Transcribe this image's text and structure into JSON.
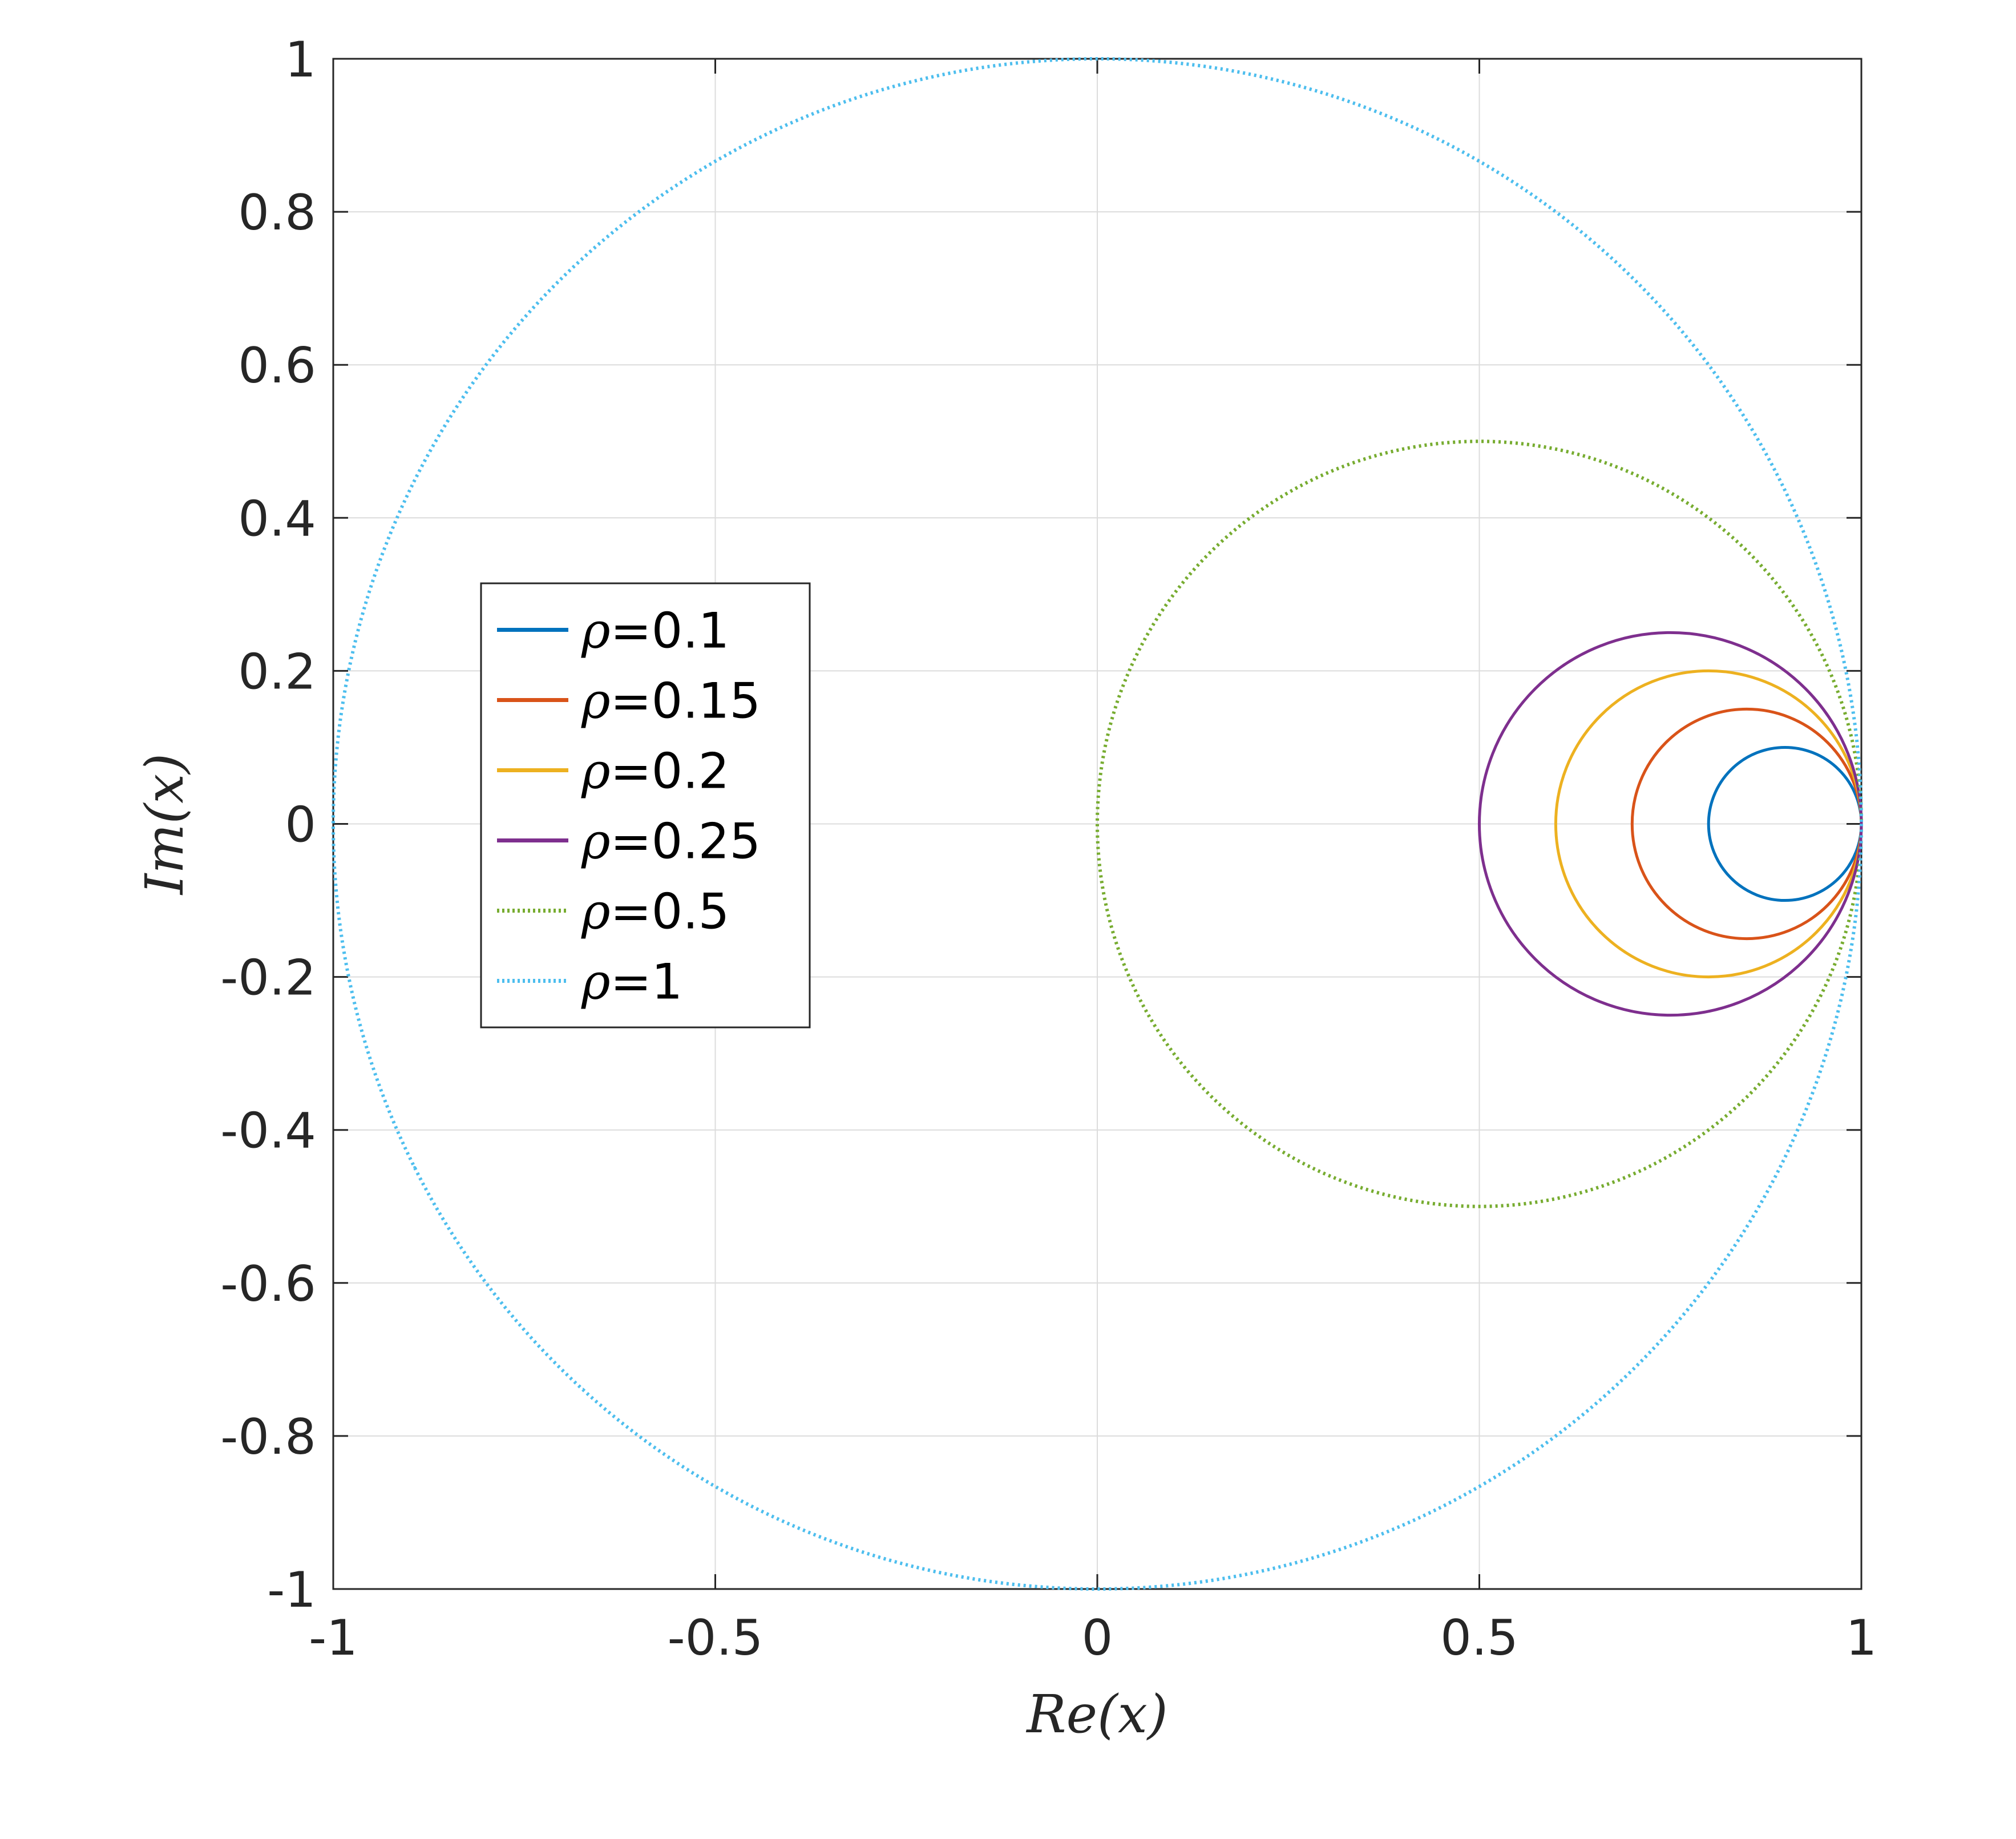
{
  "chart_data": {
    "type": "line",
    "xlabel": "Re(x)",
    "ylabel": "Im(x)",
    "xlim": [
      -1,
      1
    ],
    "ylim": [
      -1,
      1
    ],
    "x_ticks": [
      "-1",
      "-0.5",
      "0",
      "0.5",
      "1"
    ],
    "y_ticks": [
      "-1",
      "-0.8",
      "-0.6",
      "-0.4",
      "-0.2",
      "0",
      "0.2",
      "0.4",
      "0.6",
      "0.8",
      "1"
    ],
    "grid": true,
    "legend_position": "left-middle",
    "series": [
      {
        "name": "ρ=0.1",
        "symbol": "ρ",
        "value_text": "=0.1",
        "rho": 0.1,
        "center": [
          0.9,
          0
        ],
        "radius": 0.1,
        "color": "#0072BD",
        "style": "solid"
      },
      {
        "name": "ρ=0.15",
        "symbol": "ρ",
        "value_text": "=0.15",
        "rho": 0.15,
        "center": [
          0.85,
          0
        ],
        "radius": 0.15,
        "color": "#D95319",
        "style": "solid"
      },
      {
        "name": "ρ=0.2",
        "symbol": "ρ",
        "value_text": "=0.2",
        "rho": 0.2,
        "center": [
          0.8,
          0
        ],
        "radius": 0.2,
        "color": "#EDB120",
        "style": "solid"
      },
      {
        "name": "ρ=0.25",
        "symbol": "ρ",
        "value_text": "=0.25",
        "rho": 0.25,
        "center": [
          0.75,
          0
        ],
        "radius": 0.25,
        "color": "#7E2F8E",
        "style": "solid"
      },
      {
        "name": "ρ=0.5",
        "symbol": "ρ",
        "value_text": "=0.5",
        "rho": 0.5,
        "center": [
          0.5,
          0
        ],
        "radius": 0.5,
        "color": "#77AC30",
        "style": "dotted"
      },
      {
        "name": "ρ=1",
        "symbol": "ρ",
        "value_text": "=1",
        "rho": 1,
        "center": [
          0,
          0
        ],
        "radius": 1,
        "color": "#4DBEEE",
        "style": "dotted"
      }
    ]
  }
}
